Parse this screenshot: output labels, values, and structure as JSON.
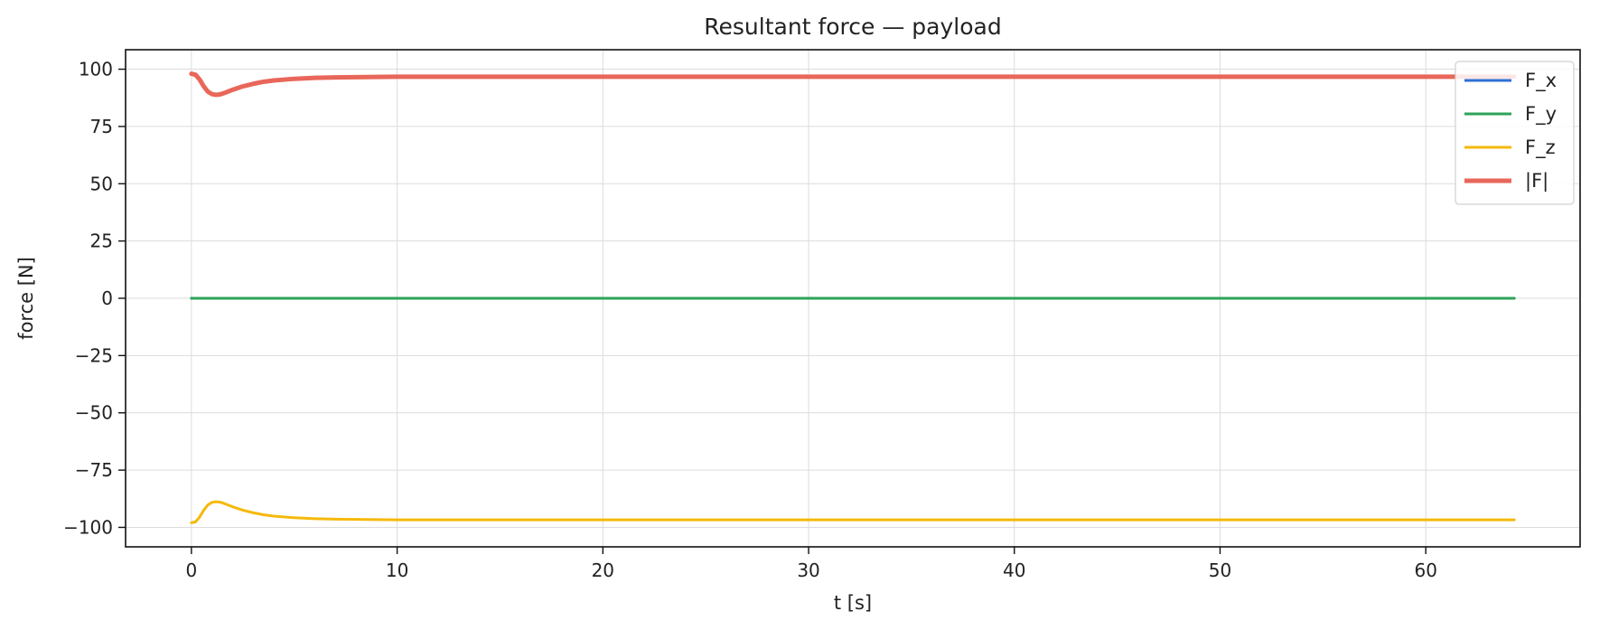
{
  "chart_data": {
    "type": "line",
    "title": "Resultant force — payload",
    "xlabel": "t [s]",
    "ylabel": "force [N]",
    "xlim": [
      -3.2,
      67.5
    ],
    "ylim": [
      -108.5,
      108.5
    ],
    "xticks": [
      0,
      10,
      20,
      30,
      40,
      50,
      60
    ],
    "yticks": [
      100,
      75,
      50,
      25,
      0,
      -25,
      -50,
      -75,
      -100
    ],
    "xtick_labels": [
      "0",
      "10",
      "20",
      "30",
      "40",
      "50",
      "60"
    ],
    "ytick_labels": [
      "100",
      "75",
      "50",
      "25",
      "0",
      "−25",
      "−50",
      "−75",
      "−100"
    ],
    "grid": true,
    "legend_position": "top-right",
    "series": [
      {
        "name": "F_x",
        "color": "#2f6fd6",
        "width": 3,
        "x": [
          0,
          64.3
        ],
        "y": [
          0,
          0
        ]
      },
      {
        "name": "F_y",
        "color": "#2ea35a",
        "width": 3,
        "x": [
          0,
          64.3
        ],
        "y": [
          0,
          0
        ]
      },
      {
        "name": "F_z",
        "color": "#f5b90a",
        "width": 3,
        "x": [
          0,
          0.2,
          0.4,
          0.6,
          0.8,
          1.0,
          1.2,
          1.4,
          1.6,
          1.8,
          2.0,
          2.5,
          3.0,
          3.5,
          4.0,
          5.0,
          6.0,
          7.0,
          8.0,
          9.0,
          10.0,
          12.0,
          15.0,
          20.0,
          30.0,
          40.0,
          50.0,
          60.0,
          64.3
        ],
        "y": [
          -98,
          -97.6,
          -95.5,
          -92.5,
          -90.2,
          -89.1,
          -88.8,
          -89.0,
          -89.6,
          -90.3,
          -91.0,
          -92.5,
          -93.6,
          -94.5,
          -95.1,
          -95.8,
          -96.2,
          -96.4,
          -96.5,
          -96.6,
          -96.7,
          -96.7,
          -96.7,
          -96.7,
          -96.7,
          -96.7,
          -96.7,
          -96.7,
          -96.7
        ]
      },
      {
        "name": "|F|",
        "color": "#e8675a",
        "width": 5,
        "x": [
          0,
          0.2,
          0.4,
          0.6,
          0.8,
          1.0,
          1.2,
          1.4,
          1.6,
          1.8,
          2.0,
          2.5,
          3.0,
          3.5,
          4.0,
          5.0,
          6.0,
          7.0,
          8.0,
          9.0,
          10.0,
          12.0,
          15.0,
          20.0,
          30.0,
          40.0,
          50.0,
          60.0,
          64.3
        ],
        "y": [
          98,
          97.6,
          95.5,
          92.5,
          90.2,
          89.1,
          88.8,
          89.0,
          89.6,
          90.3,
          91.0,
          92.5,
          93.6,
          94.5,
          95.1,
          95.8,
          96.2,
          96.4,
          96.5,
          96.6,
          96.7,
          96.7,
          96.7,
          96.7,
          96.7,
          96.7,
          96.7,
          96.7,
          96.7
        ]
      }
    ]
  }
}
